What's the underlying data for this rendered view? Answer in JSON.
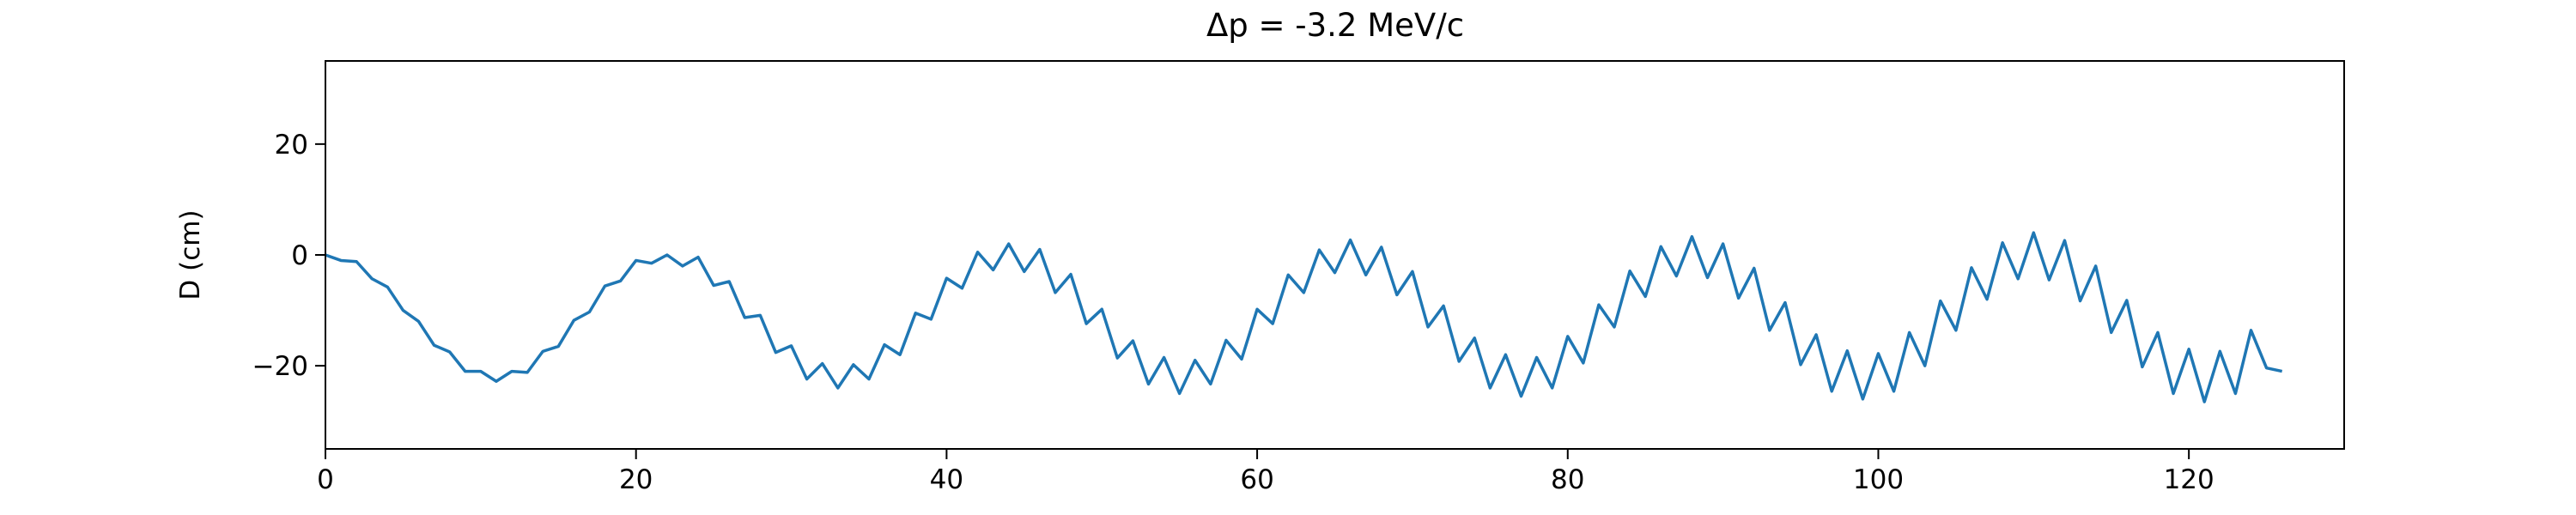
{
  "chart_data": {
    "type": "line",
    "title": "Δp = -3.2 MeV/c",
    "ylabel": "D (cm)",
    "x": [
      0,
      1,
      2,
      3,
      4,
      5,
      6,
      7,
      8,
      9,
      10,
      11,
      12,
      13,
      14,
      15,
      16,
      17,
      18,
      19,
      20,
      21,
      22,
      23,
      24,
      25,
      26,
      27,
      28,
      29,
      30,
      31,
      32,
      33,
      34,
      35,
      36,
      37,
      38,
      39,
      40,
      41,
      42,
      43,
      44,
      45,
      46,
      47,
      48,
      49,
      50,
      51,
      52,
      53,
      54,
      55,
      56,
      57,
      58,
      59,
      60,
      61,
      62,
      63,
      64,
      65,
      66,
      67,
      68,
      69,
      70,
      71,
      72,
      73,
      74,
      75,
      76,
      77,
      78,
      79,
      80,
      81,
      82,
      83,
      84,
      85,
      86,
      87,
      88,
      89,
      90,
      91,
      92,
      93,
      94,
      95,
      96,
      97,
      98,
      99,
      100,
      101,
      102,
      103,
      104,
      105,
      106,
      107,
      108,
      109,
      110,
      111,
      112,
      113,
      114,
      115,
      116,
      117,
      118,
      119,
      120,
      121,
      122,
      123,
      124,
      125,
      126
    ],
    "series": [
      {
        "name": "D",
        "color": "#1f77b4",
        "values": [
          0,
          -1,
          -1.2,
          -4.3,
          -5.8,
          -10,
          -12,
          -16.3,
          -17.5,
          -21,
          -21,
          -22.8,
          -21,
          -21.2,
          -17.4,
          -16.5,
          -11.8,
          -10.3,
          -5.6,
          -4.7,
          -1,
          -1.5,
          0,
          -2,
          -0.4,
          -5.5,
          -4.8,
          -11.3,
          -10.9,
          -17.6,
          -16.4,
          -22.4,
          -19.6,
          -24,
          -19.8,
          -22.4,
          -16.2,
          -18,
          -10.5,
          -11.6,
          -4.2,
          -6,
          0.5,
          -2.7,
          2,
          -3,
          1,
          -6.8,
          -3.5,
          -12.4,
          -9.8,
          -18.6,
          -15.5,
          -23.3,
          -18.5,
          -25,
          -19,
          -23.3,
          -15.4,
          -18.8,
          -9.8,
          -12.4,
          -3.6,
          -6.8,
          0.9,
          -3.2,
          2.7,
          -3.6,
          1.4,
          -7.2,
          -3,
          -13,
          -9.2,
          -19.2,
          -15,
          -24,
          -18,
          -25.5,
          -18.5,
          -24,
          -14.7,
          -19.5,
          -9,
          -13,
          -2.9,
          -7.5,
          1.5,
          -3.8,
          3.3,
          -4.1,
          2,
          -7.8,
          -2.4,
          -13.6,
          -8.6,
          -19.8,
          -14.4,
          -24.6,
          -17.3,
          -26,
          -17.8,
          -24.6,
          -14,
          -20,
          -8.3,
          -13.6,
          -2.3,
          -8,
          2.2,
          -4.3,
          4,
          -4.5,
          2.6,
          -8.3,
          -2,
          -14,
          -8.2,
          -20.2,
          -14,
          -25,
          -17,
          -26.5,
          -17.4,
          -25,
          -13.6,
          -20.4,
          -21
        ]
      }
    ],
    "xlim": [
      0,
      130
    ],
    "ylim": [
      -35,
      35
    ],
    "xticks": [
      0,
      20,
      40,
      60,
      80,
      100,
      120
    ],
    "yticks": [
      {
        "value": -20,
        "label": "−20"
      },
      0,
      20
    ]
  }
}
